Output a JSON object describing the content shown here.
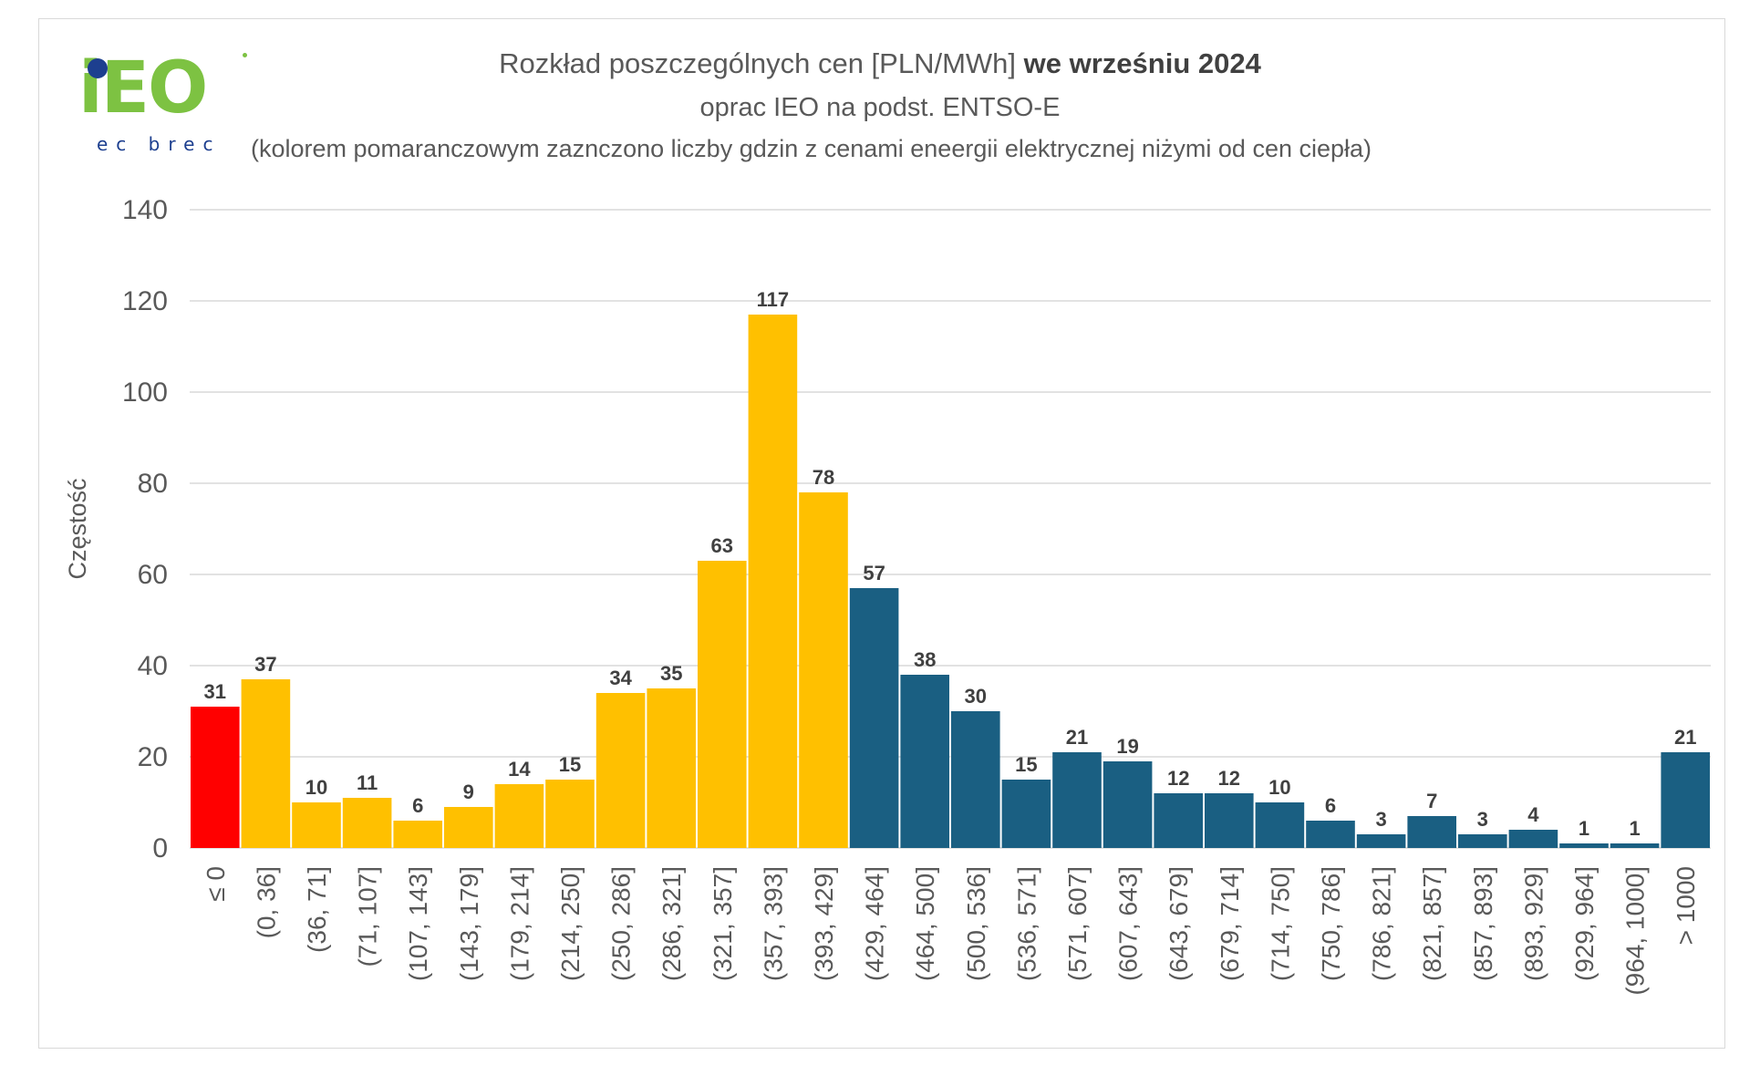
{
  "title": {
    "line1_prefix": "Rozkład poszczególnych cen [PLN/MWh] ",
    "line1_bold": "we wrześniu 2024",
    "line2": "oprac IEO na podst. ENTSO-E",
    "line3": "(kolorem pomaranczowym zaznczono liczby gdzin z cenami eneergii elektrycznej niżymi od cen ciepła)"
  },
  "logo": {
    "text": "iEO",
    "subtext": "ec brec"
  },
  "colors": {
    "negative": "#ff0000",
    "cheaper_than_heat": "#ffc000",
    "other": "#1a5f82",
    "grid": "#d9d9d9",
    "text": "#595959",
    "label": "#404040"
  },
  "chart_data": {
    "type": "bar",
    "ylabel": "Częstość",
    "xlabel": "",
    "ylim": [
      0,
      140
    ],
    "yticks": [
      "0",
      "20",
      "40",
      "60",
      "80",
      "100",
      "120",
      "140"
    ],
    "grid": true,
    "categories": [
      "≤ 0",
      "(0, 36]",
      "(36, 71]",
      "(71, 107]",
      "(107, 143]",
      "(143, 179]",
      "(179, 214]",
      "(214, 250]",
      "(250, 286]",
      "(286, 321]",
      "(321, 357]",
      "(357, 393]",
      "(393, 429]",
      "(429, 464]",
      "(464, 500]",
      "(500, 536]",
      "(536, 571]",
      "(571, 607]",
      "(607, 643]",
      "(643, 679]",
      "(679, 714]",
      "(714, 750]",
      "(750, 786]",
      "(786, 821]",
      "(821, 857]",
      "(857, 893]",
      "(893, 929]",
      "(929, 964]",
      "(964, 1000]",
      "> 1000"
    ],
    "values": [
      31,
      37,
      10,
      11,
      6,
      9,
      14,
      15,
      34,
      35,
      63,
      117,
      78,
      57,
      38,
      30,
      15,
      21,
      19,
      12,
      12,
      10,
      6,
      3,
      7,
      3,
      4,
      1,
      1,
      21
    ],
    "bar_color_groups": [
      "negative",
      "cheaper_than_heat",
      "cheaper_than_heat",
      "cheaper_than_heat",
      "cheaper_than_heat",
      "cheaper_than_heat",
      "cheaper_than_heat",
      "cheaper_than_heat",
      "cheaper_than_heat",
      "cheaper_than_heat",
      "cheaper_than_heat",
      "cheaper_than_heat",
      "cheaper_than_heat",
      "other",
      "other",
      "other",
      "other",
      "other",
      "other",
      "other",
      "other",
      "other",
      "other",
      "other",
      "other",
      "other",
      "other",
      "other",
      "other",
      "other"
    ]
  }
}
